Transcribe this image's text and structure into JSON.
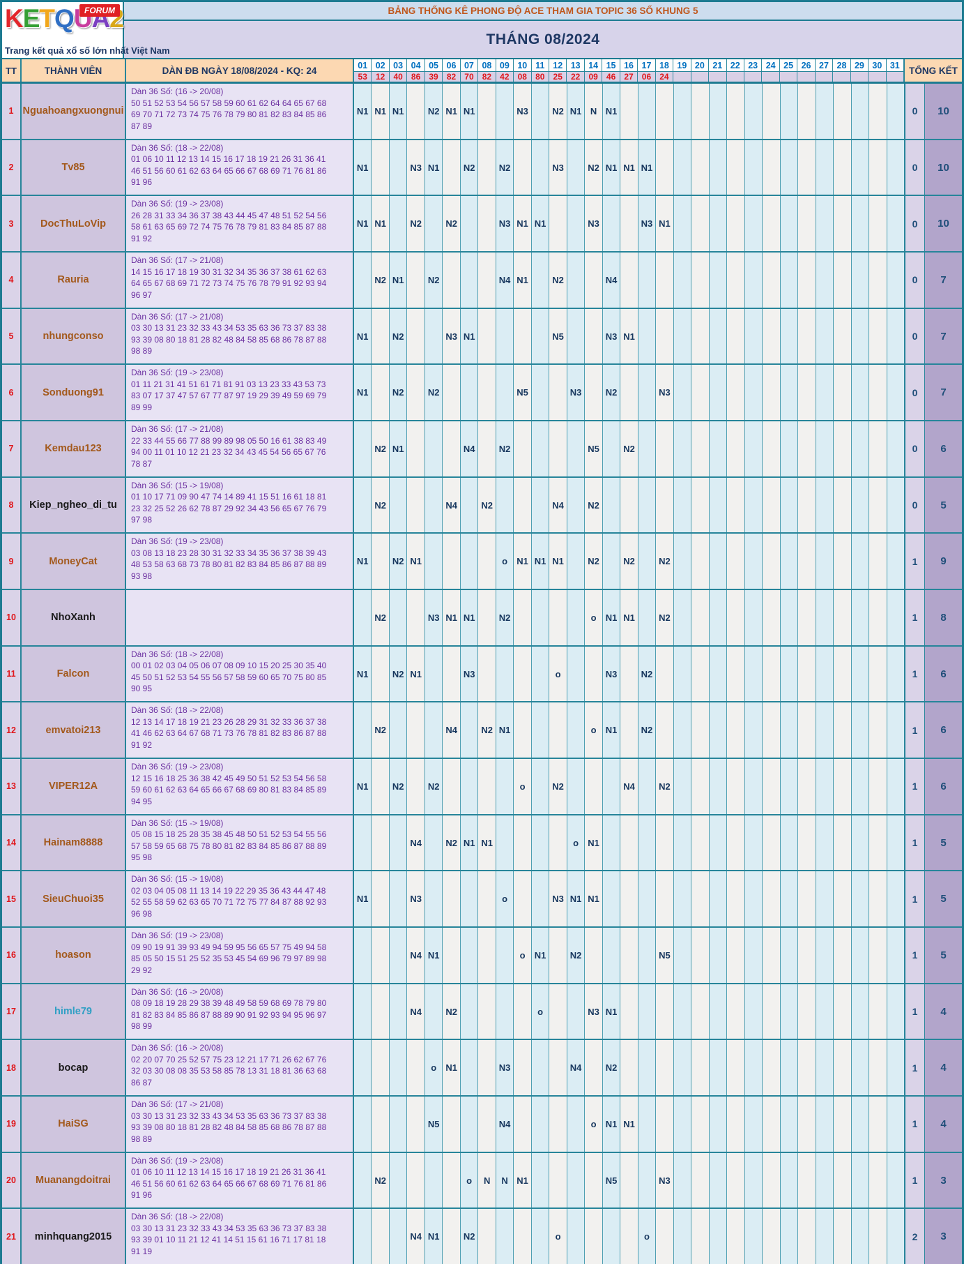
{
  "logo": {
    "letters": [
      {
        "ch": "K",
        "color": "#e3262b"
      },
      {
        "ch": "E",
        "color": "#35a035"
      },
      {
        "ch": "T",
        "color": "#f2a71b"
      },
      {
        "ch": "Q",
        "color": "#2f6fc4"
      },
      {
        "ch": "U",
        "color": "#c93c9e"
      },
      {
        "ch": "A",
        "color": "#7b3fc1"
      },
      {
        "ch": "2",
        "color": "#d9a718"
      }
    ],
    "forum": "FORUM",
    "tagline": "Trang kết quả xổ số lớn nhất Việt Nam"
  },
  "titles": {
    "top": "BẢNG THỐNG KÊ PHONG ĐỘ ACE THAM GIA TOPIC 36 SỐ KHUNG 5",
    "month": "THÁNG 08/2024"
  },
  "header": {
    "tt": "TT",
    "member": "THÀNH VIÊN",
    "dan": "DÀN ĐB NGÀY 18/08/2024 - KQ: 24",
    "total": "TỔNG KẾT",
    "days": [
      "01",
      "02",
      "03",
      "04",
      "05",
      "06",
      "07",
      "08",
      "09",
      "10",
      "11",
      "12",
      "13",
      "14",
      "15",
      "16",
      "17",
      "18",
      "19",
      "20",
      "21",
      "22",
      "23",
      "24",
      "25",
      "26",
      "27",
      "28",
      "29",
      "30",
      "31"
    ],
    "day_values": [
      "53",
      "12",
      "40",
      "86",
      "39",
      "82",
      "70",
      "82",
      "42",
      "08",
      "80",
      "25",
      "22",
      "09",
      "46",
      "27",
      "06",
      "24",
      "",
      "",
      "",
      "",
      "",
      "",
      "",
      "",
      "",
      "",
      "",
      "",
      ""
    ]
  },
  "rows": [
    {
      "tt": "1",
      "name": "Nguahoangxuongnui",
      "name_color": "#a3591c",
      "dan_title": "Dàn 36 Số: (16 -> 20/08)",
      "dan_lines": [
        "50 51 52 53 54 56 57 58 59 60 61 62 64 64 65 67 68",
        "69 70 71 72 73 74 75 76 78 79 80 81 82 83 84 85 86",
        "87 89"
      ],
      "marks": {
        "1": "N1",
        "2": "N1",
        "3": "N1",
        "5": "N2",
        "6": "N1",
        "7": "N1",
        "10": "N3",
        "12": "N2",
        "13": "N1",
        "14": "N",
        "15": "N1"
      },
      "miss": "0",
      "win": "10"
    },
    {
      "tt": "2",
      "name": "Tv85",
      "name_color": "#a3591c",
      "dan_title": "Dàn 36 Số: (18 -> 22/08)",
      "dan_lines": [
        "01 06 10 11 12 13 14 15 16 17 18 19 21 26 31 36 41",
        "46 51 56 60 61 62 63 64 65 66 67 68 69 71 76 81 86",
        "91 96"
      ],
      "marks": {
        "1": "N1",
        "4": "N3",
        "5": "N1",
        "7": "N2",
        "9": "N2",
        "12": "N3",
        "14": "N2",
        "15": "N1",
        "16": "N1",
        "17": "N1"
      },
      "miss": "0",
      "win": "10"
    },
    {
      "tt": "3",
      "name": "DocThuLoVip",
      "name_color": "#a3591c",
      "dan_title": "Dàn 36 Số: (19 -> 23/08)",
      "dan_lines": [
        "26 28 31 33 34 36 37 38 43 44 45 47 48 51 52 54 56",
        "58 61 63 65 69 72 74 75 76 78 79 81 83 84 85 87 88",
        "91 92"
      ],
      "marks": {
        "1": "N1",
        "2": "N1",
        "4": "N2",
        "6": "N2",
        "9": "N3",
        "10": "N1",
        "11": "N1",
        "14": "N3",
        "17": "N3",
        "18": "N1"
      },
      "miss": "0",
      "win": "10"
    },
    {
      "tt": "4",
      "name": "Rauria",
      "name_color": "#a3591c",
      "dan_title": "Dàn 36 Số: (17 -> 21/08)",
      "dan_lines": [
        "14 15 16 17 18 19 30 31 32 34 35 36 37 38 61 62 63",
        "64 65 67 68 69 71 72 73 74 75 76 78 79 91 92 93 94",
        "96 97"
      ],
      "marks": {
        "2": "N2",
        "3": "N1",
        "5": "N2",
        "9": "N4",
        "10": "N1",
        "12": "N2",
        "15": "N4"
      },
      "miss": "0",
      "win": "7"
    },
    {
      "tt": "5",
      "name": "nhungconso",
      "name_color": "#a3591c",
      "dan_title": "Dàn 36 Số: (17 -> 21/08)",
      "dan_lines": [
        "03 30 13 31 23 32 33 43 34 53 35 63 36 73 37 83 38",
        "93 39 08 80 18 81 28 82 48 84 58 85 68 86 78 87 88",
        "98 89"
      ],
      "marks": {
        "1": "N1",
        "3": "N2",
        "6": "N3",
        "7": "N1",
        "12": "N5",
        "15": "N3",
        "16": "N1"
      },
      "miss": "0",
      "win": "7"
    },
    {
      "tt": "6",
      "name": "Sonduong91",
      "name_color": "#a3591c",
      "dan_title": "Dàn 36 Số: (19 -> 23/08)",
      "dan_lines": [
        "01 11 21 31 41 51 61 71 81 91 03 13 23 33 43 53 73",
        "83 07 17 37 47 57 67 77 87 97 19 29 39 49 59 69 79",
        "89 99"
      ],
      "marks": {
        "1": "N1",
        "3": "N2",
        "5": "N2",
        "10": "N5",
        "13": "N3",
        "15": "N2",
        "18": "N3"
      },
      "miss": "0",
      "win": "7"
    },
    {
      "tt": "7",
      "name": "Kemdau123",
      "name_color": "#a3591c",
      "dan_title": "Dàn 36 Số: (17 -> 21/08)",
      "dan_lines": [
        "22 33 44 55 66 77 88 99 89 98 05 50 16 61 38 83 49",
        "94 00 11 01 10 12 21 23 32 34 43 45 54 56 65 67 76",
        "78 87"
      ],
      "marks": {
        "2": "N2",
        "3": "N1",
        "7": "N4",
        "9": "N2",
        "14": "N5",
        "16": "N2"
      },
      "miss": "0",
      "win": "6"
    },
    {
      "tt": "8",
      "name": "Kiep_ngheo_di_tu",
      "name_color": "#1a1a1a",
      "dan_title": "Dàn 36 Số: (15 -> 19/08)",
      "dan_lines": [
        "01 10 17 71 09 90 47 74 14 89 41 15 51 16 61 18 81",
        "23 32 25 52 26 62 78 87 29 92 34 43 56 65 67 76 79",
        "97 98"
      ],
      "marks": {
        "2": "N2",
        "6": "N4",
        "8": "N2",
        "12": "N4",
        "14": "N2"
      },
      "miss": "0",
      "win": "5"
    },
    {
      "tt": "9",
      "name": "MoneyCat",
      "name_color": "#a3591c",
      "dan_title": "Dàn 36 Số: (19 -> 23/08)",
      "dan_lines": [
        "03 08 13 18 23 28 30 31 32 33 34 35 36 37 38 39 43",
        "48 53 58 63 68 73 78 80 81 82 83 84 85 86 87 88 89",
        "93 98"
      ],
      "marks": {
        "1": "N1",
        "3": "N2",
        "4": "N1",
        "9": "o",
        "10": "N1",
        "11": "N1",
        "12": "N1",
        "14": "N2",
        "16": "N2",
        "18": "N2"
      },
      "miss": "1",
      "win": "9"
    },
    {
      "tt": "10",
      "name": "NhoXanh",
      "name_color": "#1a1a1a",
      "dan_title": "",
      "dan_lines": [],
      "marks": {
        "2": "N2",
        "5": "N3",
        "6": "N1",
        "7": "N1",
        "9": "N2",
        "14": "o",
        "15": "N1",
        "16": "N1",
        "18": "N2"
      },
      "miss": "1",
      "win": "8"
    },
    {
      "tt": "11",
      "name": "Falcon",
      "name_color": "#a3591c",
      "dan_title": "Dàn 36 Số: (18 -> 22/08)",
      "dan_lines": [
        "00 01 02 03 04 05 06 07 08 09 10 15 20 25 30 35 40",
        "45 50 51 52 53 54 55 56 57 58 59 60 65 70 75 80 85",
        "90 95"
      ],
      "marks": {
        "1": "N1",
        "3": "N2",
        "4": "N1",
        "7": "N3",
        "12": "o",
        "15": "N3",
        "17": "N2"
      },
      "miss": "1",
      "win": "6"
    },
    {
      "tt": "12",
      "name": "emvatoi213",
      "name_color": "#a3591c",
      "dan_title": "Dàn 36 Số: (18 -> 22/08)",
      "dan_lines": [
        "12 13 14 17 18 19 21 23 26 28 29 31 32 33 36 37 38",
        "41 46 62 63 64 67 68 71 73 76 78 81 82 83 86 87 88",
        "91 92"
      ],
      "marks": {
        "2": "N2",
        "6": "N4",
        "8": "N2",
        "9": "N1",
        "14": "o",
        "15": "N1",
        "17": "N2"
      },
      "miss": "1",
      "win": "6"
    },
    {
      "tt": "13",
      "name": "VIPER12A",
      "name_color": "#a3591c",
      "dan_title": "Dàn 36 Số: (19 -> 23/08)",
      "dan_lines": [
        "12 15 16 18 25 36 38 42 45 49 50 51 52 53 54 56 58",
        "59 60 61 62 63 64 65 66 67 68 69 80 81 83 84 85 89",
        "94 95"
      ],
      "marks": {
        "1": "N1",
        "3": "N2",
        "5": "N2",
        "10": "o",
        "12": "N2",
        "16": "N4",
        "18": "N2"
      },
      "miss": "1",
      "win": "6"
    },
    {
      "tt": "14",
      "name": "Hainam8888",
      "name_color": "#a3591c",
      "dan_title": "Dàn 36 Số: (15 -> 19/08)",
      "dan_lines": [
        "05 08 15 18 25 28 35 38 45 48 50 51 52 53 54 55 56",
        "57 58 59 65 68 75 78 80 81 82 83 84 85 86 87 88 89",
        "95 98"
      ],
      "marks": {
        "4": "N4",
        "6": "N2",
        "7": "N1",
        "8": "N1",
        "13": "o",
        "14": "N1"
      },
      "miss": "1",
      "win": "5"
    },
    {
      "tt": "15",
      "name": "SieuChuoi35",
      "name_color": "#a3591c",
      "dan_title": "Dàn 36 Số: (15 -> 19/08)",
      "dan_lines": [
        "02 03 04 05 08 11 13 14 19 22 29 35 36 43 44 47 48",
        "52 55 58 59 62 63 65 70 71 72 75 77 84 87 88 92 93",
        "96 98"
      ],
      "marks": {
        "1": "N1",
        "4": "N3",
        "9": "o",
        "12": "N3",
        "13": "N1",
        "14": "N1"
      },
      "miss": "1",
      "win": "5"
    },
    {
      "tt": "16",
      "name": "hoason",
      "name_color": "#a3591c",
      "dan_title": "Dàn 36 Số: (19 -> 23/08)",
      "dan_lines": [
        "09 90 19 91 39 93 49 94 59 95 56 65 57 75 49 94 58",
        "85 05 50 15 51 25 52 35 53 45 54 69 96 79 97 89 98",
        "29 92"
      ],
      "marks": {
        "4": "N4",
        "5": "N1",
        "10": "o",
        "11": "N1",
        "13": "N2",
        "18": "N5"
      },
      "miss": "1",
      "win": "5"
    },
    {
      "tt": "17",
      "name": "himle79",
      "name_color": "#2f9fc4",
      "dan_title": "Dàn 36 Số: (16 -> 20/08)",
      "dan_lines": [
        "08 09 18 19 28 29 38 39 48 49 58 59 68 69 78 79 80",
        "81 82 83 84 85 86 87 88 89 90 91 92 93 94 95 96 97",
        "98 99"
      ],
      "marks": {
        "4": "N4",
        "6": "N2",
        "11": "o",
        "14": "N3",
        "15": "N1"
      },
      "miss": "1",
      "win": "4"
    },
    {
      "tt": "18",
      "name": "bocap",
      "name_color": "#1a1a1a",
      "dan_title": "Dàn 36 Số: (16 -> 20/08)",
      "dan_lines": [
        "02 20 07 70 25 52 57 75 23 12 21 17 71 26 62 67 76",
        "32 03 30 08 08 35 53 58 85 78 13 31 18 81 36 63 68",
        "86 87"
      ],
      "marks": {
        "5": "o",
        "6": "N1",
        "9": "N3",
        "13": "N4",
        "15": "N2"
      },
      "miss": "1",
      "win": "4"
    },
    {
      "tt": "19",
      "name": "HaiSG",
      "name_color": "#a3591c",
      "dan_title": "Dàn 36 Số: (17 -> 21/08)",
      "dan_lines": [
        "03 30 13 31 23 32 33 43 34 53 35 63 36 73 37 83 38",
        "93 39 08 80 18 81 28 82 48 84 58 85 68 86 78 87 88",
        "98 89"
      ],
      "marks": {
        "5": "N5",
        "9": "N4",
        "14": "o",
        "15": "N1",
        "16": "N1"
      },
      "miss": "1",
      "win": "4"
    },
    {
      "tt": "20",
      "name": "Muanangdoitrai",
      "name_color": "#a3591c",
      "dan_title": "Dàn 36 Số: (19 -> 23/08)",
      "dan_lines": [
        "01 06 10 11 12 13 14 15 16 17 18 19 21 26 31 36 41",
        "46 51 56 60 61 62 63 64 65 66 67 68 69 71 76 81 86",
        "91 96"
      ],
      "marks": {
        "2": "N2",
        "7": "o",
        "8": "N",
        "9": "N",
        "10": "N1",
        "15": "N5",
        "18": "N3"
      },
      "miss": "1",
      "win": "3"
    },
    {
      "tt": "21",
      "name": "minhquang2015",
      "name_color": "#1a1a1a",
      "dan_title": "Dàn 36 Số: (18 -> 22/08)",
      "dan_lines": [
        "03 30 13 31 23 32 33 43 34 53 35 63 36 73 37 83 38",
        "93 39 01 10 11 21 12 41 14 51 15 61 16 71 17 81 18",
        "91 19"
      ],
      "marks": {
        "4": "N4",
        "5": "N1",
        "7": "N2",
        "12": "o",
        "17": "o"
      },
      "miss": "2",
      "win": "3"
    }
  ]
}
